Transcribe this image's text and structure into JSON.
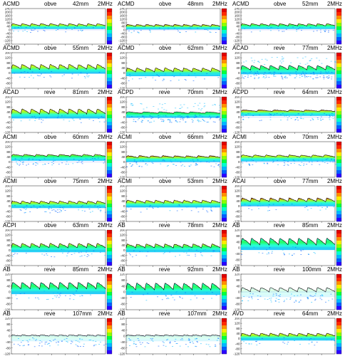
{
  "colormap": [
    "#2b00ff",
    "#0060ff",
    "#00b8ff",
    "#00ffd0",
    "#00ff40",
    "#8cff00",
    "#ffee00",
    "#ff9000",
    "#ff2a00",
    "#e00000"
  ],
  "panels": [
    {
      "site": "ACMD",
      "dir": "obve",
      "depth": "42mm",
      "freq": "2MHz",
      "yticks": [
        "240",
        "200",
        "160",
        "120",
        "80",
        "40",
        "0",
        "-40",
        "-80",
        "-120",
        "-160"
      ],
      "ymax": 240,
      "ymin": -160,
      "baseline": 45,
      "amp": 25,
      "beat": 10,
      "heat": 0.55,
      "noise": "low"
    },
    {
      "site": "ACMD",
      "dir": "obve",
      "depth": "48mm",
      "freq": "2MHz",
      "yticks": [
        "240",
        "200",
        "160",
        "120",
        "80",
        "40",
        "0",
        "-40",
        "-80",
        "-120",
        "-160"
      ],
      "ymax": 240,
      "ymin": -160,
      "baseline": 40,
      "amp": 22,
      "beat": 10,
      "heat": 0.75,
      "noise": "low"
    },
    {
      "site": "ACMD",
      "dir": "obve",
      "depth": "52mm",
      "freq": "2MHz",
      "yticks": [
        "240",
        "200",
        "160",
        "120",
        "80",
        "40",
        "0",
        "-40",
        "-80",
        "-120",
        "-160"
      ],
      "ymax": 240,
      "ymin": -160,
      "baseline": 45,
      "amp": 25,
      "beat": 10,
      "heat": 0.5,
      "noise": "low"
    },
    {
      "site": "ACMD",
      "dir": "obve",
      "depth": "55mm",
      "freq": "2MHz",
      "yticks": [
        "160",
        "120",
        "80",
        "40",
        "0",
        "-40",
        "-80",
        "-120"
      ],
      "ymax": 160,
      "ymin": -120,
      "baseline": 30,
      "amp": 38,
      "beat": 10,
      "heat": 0.65,
      "noise": "low"
    },
    {
      "site": "ACMD",
      "dir": "obve",
      "depth": "62mm",
      "freq": "2MHz",
      "yticks": [
        "160",
        "120",
        "80",
        "40",
        "0",
        "-40",
        "-80",
        "-120"
      ],
      "ymax": 160,
      "ymin": -120,
      "baseline": 10,
      "amp": 30,
      "beat": 10,
      "heat": 0.6,
      "noise": "low"
    },
    {
      "site": "ACAD",
      "dir": "reve",
      "depth": "77mm",
      "freq": "2MHz",
      "yticks": [
        "160",
        "120",
        "80",
        "40",
        "0",
        "-40",
        "-80",
        "-120"
      ],
      "ymax": 160,
      "ymin": -120,
      "baseline": 25,
      "amp": 35,
      "beat": 10,
      "heat": 0.3,
      "noise": "high"
    },
    {
      "site": "ACAD",
      "dir": "reve",
      "depth": "81mm",
      "freq": "2MHz",
      "yticks": [
        "160",
        "120",
        "80",
        "40",
        "0",
        "-40",
        "-80",
        "-120"
      ],
      "ymax": 160,
      "ymin": -120,
      "baseline": 25,
      "amp": 40,
      "beat": 10,
      "heat": 0.7,
      "noise": "low"
    },
    {
      "site": "ACPD",
      "dir": "reve",
      "depth": "70mm",
      "freq": "2MHz",
      "yticks": [
        "160",
        "120",
        "80",
        "40",
        "0",
        "-40",
        "-80",
        "-120"
      ],
      "ymax": 160,
      "ymin": -120,
      "baseline": 30,
      "amp": 12,
      "beat": 6,
      "heat": 0.35,
      "noise": "high"
    },
    {
      "site": "ACPD",
      "dir": "reve",
      "depth": "64mm",
      "freq": "2MHz",
      "yticks": [
        "160",
        "120",
        "80",
        "40",
        "0",
        "-40",
        "-80",
        "-120"
      ],
      "ymax": 160,
      "ymin": -120,
      "baseline": 45,
      "amp": 12,
      "beat": 6,
      "heat": 0.95,
      "noise": "med"
    },
    {
      "site": "ACMI",
      "dir": "obve",
      "depth": "60mm",
      "freq": "2MHz",
      "yticks": [
        "160",
        "120",
        "80",
        "40",
        "0",
        "-40",
        "-80",
        "-120"
      ],
      "ymax": 160,
      "ymin": -120,
      "baseline": 45,
      "amp": 15,
      "beat": 8,
      "heat": 0.5,
      "noise": "med"
    },
    {
      "site": "ACMI",
      "dir": "obve",
      "depth": "66mm",
      "freq": "2MHz",
      "yticks": [
        "160",
        "120",
        "80",
        "40",
        "0",
        "-40",
        "-80",
        "-120"
      ],
      "ymax": 160,
      "ymin": -120,
      "baseline": 35,
      "amp": 15,
      "beat": 8,
      "heat": 0.85,
      "noise": "med"
    },
    {
      "site": "ACMI",
      "dir": "obve",
      "depth": "70mm",
      "freq": "2MHz",
      "yticks": [
        "160",
        "120",
        "80",
        "40",
        "0",
        "-40",
        "-80",
        "-120"
      ],
      "ymax": 160,
      "ymin": -120,
      "baseline": 40,
      "amp": 15,
      "beat": 8,
      "heat": 0.55,
      "noise": "med"
    },
    {
      "site": "ACMI",
      "dir": "obve",
      "depth": "75mm",
      "freq": "2MHz",
      "yticks": [
        "160",
        "120",
        "80",
        "40",
        "0",
        "-40",
        "-80",
        "-120"
      ],
      "ymax": 160,
      "ymin": -120,
      "baseline": 20,
      "amp": 20,
      "beat": 10,
      "heat": 0.6,
      "noise": "med"
    },
    {
      "site": "ACMI",
      "dir": "obve",
      "depth": "53mm",
      "freq": "2MHz",
      "yticks": [
        "160",
        "120",
        "80",
        "40",
        "0",
        "-40",
        "-80",
        "-120"
      ],
      "ymax": 160,
      "ymin": -120,
      "baseline": 25,
      "amp": 22,
      "beat": 10,
      "heat": 0.6,
      "noise": "low"
    },
    {
      "site": "ACAI",
      "dir": "obve",
      "depth": "77mm",
      "freq": "2MHz",
      "yticks": [
        "160",
        "120",
        "80",
        "40",
        "0",
        "-40",
        "-80",
        "-120"
      ],
      "ymax": 160,
      "ymin": -120,
      "baseline": 35,
      "amp": 30,
      "beat": 10,
      "heat": 0.75,
      "noise": "low"
    },
    {
      "site": "ACPI",
      "dir": "obve",
      "depth": "63mm",
      "freq": "2MHz",
      "yticks": [
        "160",
        "120",
        "80",
        "40",
        "0",
        "-40",
        "-80",
        "-120"
      ],
      "ymax": 160,
      "ymin": -120,
      "baseline": 20,
      "amp": 35,
      "beat": 10,
      "heat": 0.5,
      "noise": "low"
    },
    {
      "site": "AB",
      "dir": "reve",
      "depth": "78mm",
      "freq": "2MHz",
      "yticks": [
        "160",
        "120",
        "80",
        "40",
        "0",
        "-40",
        "-80",
        "-120"
      ],
      "ymax": 160,
      "ymin": -120,
      "baseline": 20,
      "amp": 30,
      "beat": 10,
      "heat": 0.45,
      "noise": "low"
    },
    {
      "site": "AB",
      "dir": "reve",
      "depth": "85mm",
      "freq": "2MHz",
      "yticks": [
        "120",
        "80",
        "40",
        "0",
        "-40",
        "-80",
        "-120"
      ],
      "ymax": 120,
      "ymin": -120,
      "baseline": 20,
      "amp": 45,
      "beat": 10,
      "heat": 0.4,
      "noise": "low"
    },
    {
      "site": "AB",
      "dir": "reve",
      "depth": "85mm",
      "freq": "2MHz",
      "yticks": [
        "120",
        "80",
        "40",
        "0",
        "-40",
        "-80",
        "-120"
      ],
      "ymax": 120,
      "ymin": -120,
      "baseline": 20,
      "amp": 45,
      "beat": 10,
      "heat": 0.4,
      "noise": "low"
    },
    {
      "site": "AB",
      "dir": "reve",
      "depth": "92mm",
      "freq": "2MHz",
      "yticks": [
        "120",
        "80",
        "40",
        "0",
        "-40",
        "-80",
        "-120"
      ],
      "ymax": 120,
      "ymin": -120,
      "baseline": 15,
      "amp": 45,
      "beat": 10,
      "heat": 0.35,
      "noise": "low"
    },
    {
      "site": "AB",
      "dir": "reve",
      "depth": "100mm",
      "freq": "2MHz",
      "yticks": [
        "120",
        "80",
        "40",
        "0",
        "-40",
        "-80",
        "-120"
      ],
      "ymax": 120,
      "ymin": -120,
      "baseline": 0,
      "amp": 30,
      "beat": 10,
      "heat": 0.1,
      "noise": "med"
    },
    {
      "site": "AB",
      "dir": "reve",
      "depth": "107mm",
      "freq": "2MHz",
      "yticks": [
        "120",
        "80",
        "40",
        "0",
        "-40",
        "-80",
        "-120"
      ],
      "ymax": 120,
      "ymin": -120,
      "baseline": 0,
      "amp": 8,
      "beat": 10,
      "heat": 0.05,
      "noise": "med"
    },
    {
      "site": "AB",
      "dir": "reve",
      "depth": "107mm",
      "freq": "2MHz",
      "yticks": [
        "120",
        "80",
        "40",
        "0",
        "-40",
        "-80",
        "-120"
      ],
      "ymax": 120,
      "ymin": -120,
      "baseline": 0,
      "amp": 8,
      "beat": 10,
      "heat": 0.05,
      "noise": "med"
    },
    {
      "site": "AVD",
      "dir": "reve",
      "depth": "64mm",
      "freq": "2MHz",
      "yticks": [
        "160",
        "120",
        "80",
        "40",
        "0",
        "-40",
        "-80",
        "-120"
      ],
      "ymax": 160,
      "ymin": -120,
      "baseline": 20,
      "amp": 22,
      "beat": 10,
      "heat": 0.55,
      "noise": "low"
    }
  ],
  "chart_data": {
    "type": "heatmap",
    "description_of_layout": "8 x 3 grid of Doppler spectrogram panels",
    "panels": [
      {
        "site": "ACMD",
        "dir": "obve",
        "depth": "42mm",
        "freq": "2MHz"
      },
      {
        "site": "ACMD",
        "dir": "obve",
        "depth": "48mm",
        "freq": "2MHz"
      },
      {
        "site": "ACMD",
        "dir": "obve",
        "depth": "52mm",
        "freq": "2MHz"
      },
      {
        "site": "ACMD",
        "dir": "obve",
        "depth": "55mm",
        "freq": "2MHz"
      },
      {
        "site": "ACMD",
        "dir": "obve",
        "depth": "62mm",
        "freq": "2MHz"
      },
      {
        "site": "ACAD",
        "dir": "reve",
        "depth": "77mm",
        "freq": "2MHz"
      },
      {
        "site": "ACAD",
        "dir": "reve",
        "depth": "81mm",
        "freq": "2MHz"
      },
      {
        "site": "ACPD",
        "dir": "reve",
        "depth": "70mm",
        "freq": "2MHz"
      },
      {
        "site": "ACPD",
        "dir": "reve",
        "depth": "64mm",
        "freq": "2MHz"
      },
      {
        "site": "ACMI",
        "dir": "obve",
        "depth": "60mm",
        "freq": "2MHz"
      },
      {
        "site": "ACMI",
        "dir": "obve",
        "depth": "66mm",
        "freq": "2MHz"
      },
      {
        "site": "ACMI",
        "dir": "obve",
        "depth": "70mm",
        "freq": "2MHz"
      },
      {
        "site": "ACMI",
        "dir": "obve",
        "depth": "75mm",
        "freq": "2MHz"
      },
      {
        "site": "ACMI",
        "dir": "obve",
        "depth": "53mm",
        "freq": "2MHz"
      },
      {
        "site": "ACAI",
        "dir": "obve",
        "depth": "77mm",
        "freq": "2MHz"
      },
      {
        "site": "ACPI",
        "dir": "obve",
        "depth": "63mm",
        "freq": "2MHz"
      },
      {
        "site": "AB",
        "dir": "reve",
        "depth": "78mm",
        "freq": "2MHz"
      },
      {
        "site": "AB",
        "dir": "reve",
        "depth": "85mm",
        "freq": "2MHz"
      },
      {
        "site": "AB",
        "dir": "reve",
        "depth": "85mm",
        "freq": "2MHz"
      },
      {
        "site": "AB",
        "dir": "reve",
        "depth": "92mm",
        "freq": "2MHz"
      },
      {
        "site": "AB",
        "dir": "reve",
        "depth": "100mm",
        "freq": "2MHz"
      },
      {
        "site": "AB",
        "dir": "reve",
        "depth": "107mm",
        "freq": "2MHz"
      },
      {
        "site": "AB",
        "dir": "reve",
        "depth": "107mm",
        "freq": "2MHz"
      },
      {
        "site": "AVD",
        "dir": "reve",
        "depth": "64mm",
        "freq": "2MHz"
      }
    ],
    "grid": true,
    "legend": "right colorbar per panel"
  }
}
